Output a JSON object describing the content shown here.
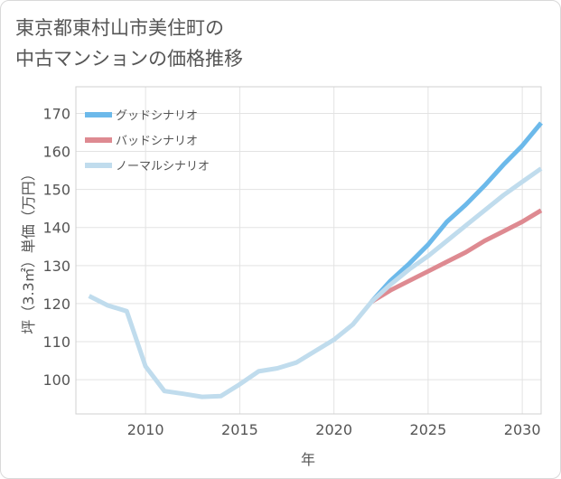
{
  "title": "東京都東村山市美住町の\n中古マンションの価格推移",
  "chart_data": {
    "type": "line",
    "xlabel": "年",
    "ylabel": "坪（3.3㎡）単価（万円）",
    "xlim": [
      2006.3,
      2031
    ],
    "ylim": [
      91,
      177
    ],
    "xticks": [
      2010,
      2015,
      2020,
      2025,
      2030
    ],
    "yticks": [
      100,
      110,
      120,
      130,
      140,
      150,
      160,
      170
    ],
    "grid": true,
    "legend_position": "top-left",
    "series": [
      {
        "name": "グッドシナリオ",
        "color": "#6cb9ea",
        "x": [
          2022,
          2023,
          2024,
          2025,
          2026,
          2027,
          2028,
          2029,
          2030,
          2031
        ],
        "y": [
          120.5,
          126,
          130.5,
          135.5,
          141.5,
          146,
          151,
          156.5,
          161.5,
          167.5
        ]
      },
      {
        "name": "バッドシナリオ",
        "color": "#de8a91",
        "x": [
          2022,
          2023,
          2024,
          2025,
          2026,
          2027,
          2028,
          2029,
          2030,
          2031
        ],
        "y": [
          120.5,
          123.5,
          126,
          128.5,
          131,
          133.5,
          136.5,
          139,
          141.5,
          144.5
        ]
      },
      {
        "name": "ノーマルシナリオ",
        "color": "#c0dced",
        "x": [
          2007,
          2008,
          2009,
          2010,
          2011,
          2012,
          2013,
          2014,
          2015,
          2016,
          2017,
          2018,
          2019,
          2020,
          2021,
          2022,
          2023,
          2024,
          2025,
          2026,
          2027,
          2028,
          2029,
          2030,
          2031
        ],
        "y": [
          122,
          119.5,
          118,
          103.5,
          97,
          96.3,
          95.5,
          95.7,
          98.8,
          102.2,
          103,
          104.5,
          107.5,
          110.5,
          114.5,
          120.5,
          125,
          129,
          132.5,
          136.5,
          140.5,
          144.5,
          148.5,
          152,
          155.5
        ]
      }
    ]
  }
}
